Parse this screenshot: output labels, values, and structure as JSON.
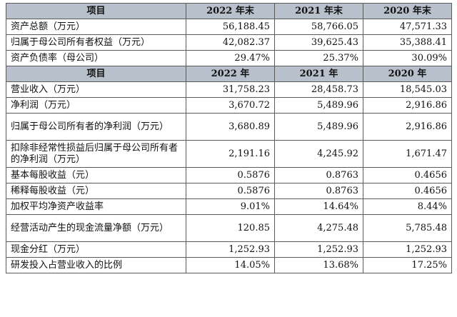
{
  "table1": {
    "header": [
      "项目",
      "2022 年末",
      "2021 年末",
      "2020 年末"
    ],
    "rows": [
      {
        "label": "资产总额（万元）",
        "values": [
          "56,188.45",
          "58,766.05",
          "47,571.33"
        ]
      },
      {
        "label": "归属于母公司所有者权益（万元）",
        "values": [
          "42,082.37",
          "39,625.43",
          "35,388.41"
        ]
      },
      {
        "label": "资产负债率（母公司）",
        "values": [
          "29.47%",
          "25.37%",
          "30.09%"
        ]
      }
    ]
  },
  "table2": {
    "header": [
      "项目",
      "2022 年",
      "2021 年",
      "2020 年"
    ],
    "rows": [
      {
        "label": "营业收入（万元）",
        "values": [
          "31,758.23",
          "28,458.73",
          "18,545.03"
        ]
      },
      {
        "label": "净利润（万元）",
        "values": [
          "3,670.72",
          "5,489.96",
          "2,916.86"
        ]
      },
      {
        "label": "归属于母公司所有者的净利润（万元）",
        "values": [
          "3,680.89",
          "5,489.96",
          "2,916.86"
        ]
      },
      {
        "label": "扣除非经常性损益后归属于母公司所有者的净利润（万元）",
        "values": [
          "2,191.16",
          "4,245.92",
          "1,671.47"
        ]
      },
      {
        "label": "基本每股收益（元）",
        "values": [
          "0.5876",
          "0.8763",
          "0.4656"
        ]
      },
      {
        "label": "稀释每股收益（元）",
        "values": [
          "0.5876",
          "0.8763",
          "0.4656"
        ]
      },
      {
        "label": "加权平均净资产收益率",
        "values": [
          "9.01%",
          "14.64%",
          "8.44%"
        ]
      },
      {
        "label": "经营活动产生的现金流量净额（万元）",
        "values": [
          "120.85",
          "4,275.48",
          "5,785.48"
        ]
      },
      {
        "label": "现金分红（万元）",
        "values": [
          "1,252.93",
          "1,252.93",
          "1,252.93"
        ]
      },
      {
        "label": "研发投入占营业收入的比例",
        "values": [
          "14.05%",
          "13.68%",
          "17.25%"
        ]
      }
    ]
  }
}
